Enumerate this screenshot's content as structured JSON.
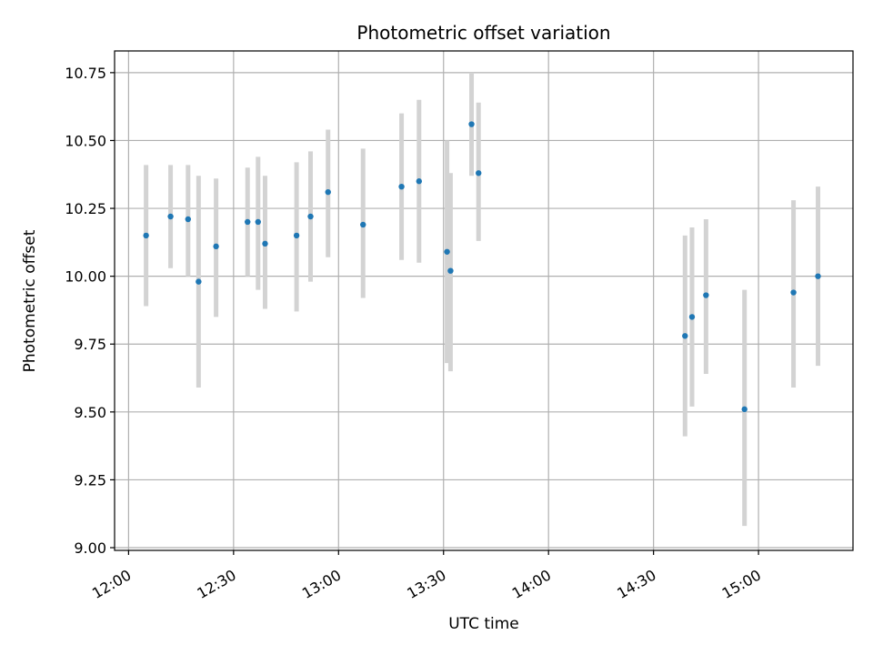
{
  "chart_data": {
    "type": "scatter",
    "title": "Photometric offset variation",
    "xlabel": "UTC time",
    "ylabel": "Photometric offset",
    "x_ticks": [
      "12:00",
      "12:30",
      "13:00",
      "13:30",
      "14:00",
      "14:30",
      "15:00"
    ],
    "y_ticks": [
      "9.00",
      "9.25",
      "9.50",
      "9.75",
      "10.00",
      "10.25",
      "10.50",
      "10.75"
    ],
    "xlim": [
      "11:56",
      "15:27"
    ],
    "ylim": [
      8.99,
      10.83
    ],
    "grid": true,
    "colors": {
      "point": "#1f77b4",
      "errorbar": "#d3d3d3",
      "grid": "#b0b0b0",
      "axes": "#000000"
    },
    "series": [
      {
        "points": [
          {
            "x": "12:05",
            "y": 10.15,
            "low": 9.89,
            "high": 10.41
          },
          {
            "x": "12:12",
            "y": 10.22,
            "low": 10.03,
            "high": 10.41
          },
          {
            "x": "12:17",
            "y": 10.21,
            "low": 10.0,
            "high": 10.41
          },
          {
            "x": "12:20",
            "y": 9.98,
            "low": 9.59,
            "high": 10.37
          },
          {
            "x": "12:25",
            "y": 10.11,
            "low": 9.85,
            "high": 10.36
          },
          {
            "x": "12:34",
            "y": 10.2,
            "low": 10.0,
            "high": 10.4
          },
          {
            "x": "12:37",
            "y": 10.2,
            "low": 9.95,
            "high": 10.44
          },
          {
            "x": "12:39",
            "y": 10.12,
            "low": 9.88,
            "high": 10.37
          },
          {
            "x": "12:48",
            "y": 10.15,
            "low": 9.87,
            "high": 10.42
          },
          {
            "x": "12:52",
            "y": 10.22,
            "low": 9.98,
            "high": 10.46
          },
          {
            "x": "12:57",
            "y": 10.31,
            "low": 10.07,
            "high": 10.54
          },
          {
            "x": "13:07",
            "y": 10.19,
            "low": 9.92,
            "high": 10.47
          },
          {
            "x": "13:18",
            "y": 10.33,
            "low": 10.06,
            "high": 10.6
          },
          {
            "x": "13:23",
            "y": 10.35,
            "low": 10.05,
            "high": 10.65
          },
          {
            "x": "13:31",
            "y": 10.09,
            "low": 9.68,
            "high": 10.5
          },
          {
            "x": "13:32",
            "y": 10.02,
            "low": 9.65,
            "high": 10.38
          },
          {
            "x": "13:38",
            "y": 10.56,
            "low": 10.37,
            "high": 10.75
          },
          {
            "x": "13:40",
            "y": 10.38,
            "low": 10.13,
            "high": 10.64
          },
          {
            "x": "14:39",
            "y": 9.78,
            "low": 9.41,
            "high": 10.15
          },
          {
            "x": "14:41",
            "y": 9.85,
            "low": 9.52,
            "high": 10.18
          },
          {
            "x": "14:45",
            "y": 9.93,
            "low": 9.64,
            "high": 10.21
          },
          {
            "x": "14:56",
            "y": 9.51,
            "low": 9.08,
            "high": 9.95
          },
          {
            "x": "15:10",
            "y": 9.94,
            "low": 9.59,
            "high": 10.28
          },
          {
            "x": "15:17",
            "y": 10.0,
            "low": 9.67,
            "high": 10.33
          }
        ]
      }
    ]
  }
}
